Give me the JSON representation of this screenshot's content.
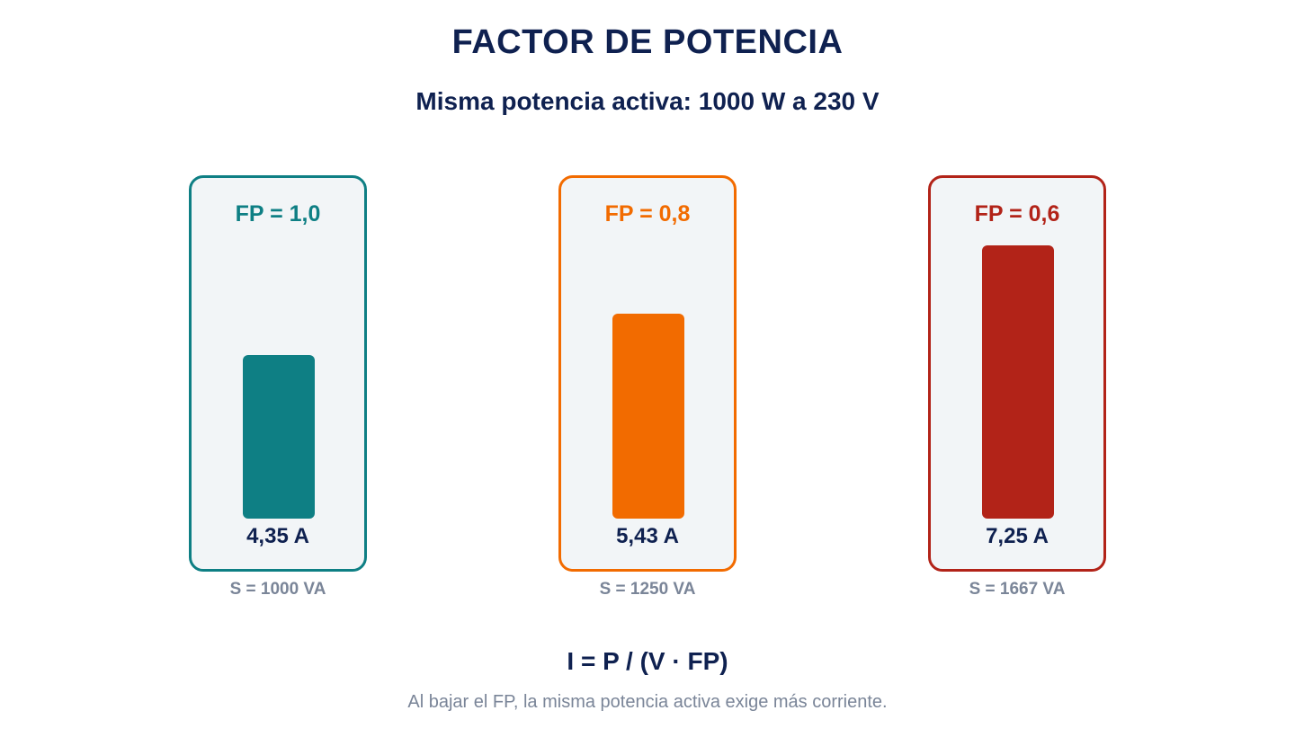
{
  "title": "FACTOR DE POTENCIA",
  "subtitle": "Misma potencia activa: 1000 W a 230 V",
  "formula": "I = P / (V · FP)",
  "note": "Al bajar el FP, la misma potencia activa exige más corriente.",
  "colors": {
    "text_dark": "#0f2150",
    "text_muted": "#7a8598",
    "card_bg": "#f2f5f7"
  },
  "chart_data": {
    "type": "bar",
    "title": "FACTOR DE POTENCIA",
    "subtitle": "Misma potencia activa: 1000 W a 230 V",
    "categories": [
      "FP = 1,0",
      "FP = 0,8",
      "FP = 0,6"
    ],
    "series": [
      {
        "values": [
          4.35,
          5.43,
          7.25
        ]
      }
    ],
    "value_labels": [
      "4,35 A",
      "5,43 A",
      "7,25 A"
    ],
    "apparent_power_labels": [
      "S = 1000 VA",
      "S = 1250 VA",
      "S = 1667 VA"
    ],
    "apparent_power_values": [
      1000,
      1250,
      1667
    ],
    "colors": [
      "#0e7f84",
      "#f26b00",
      "#b22318"
    ],
    "ylim": [
      0,
      7.25
    ],
    "grid": false
  }
}
